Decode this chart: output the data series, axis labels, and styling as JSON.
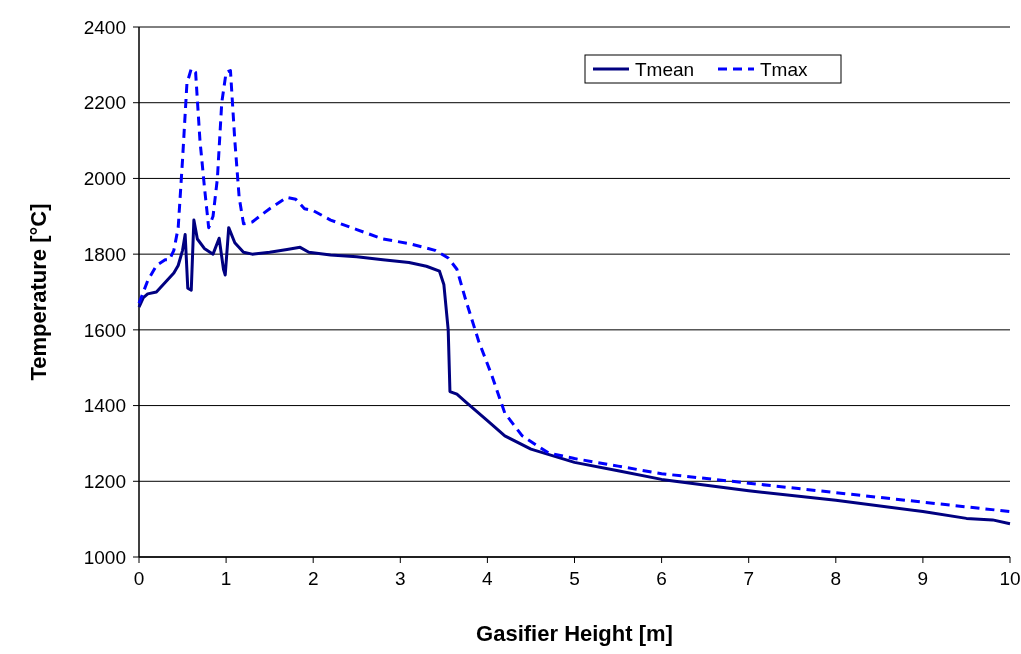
{
  "chart_data": {
    "type": "line",
    "xlabel": "Gasifier Height [m]",
    "ylabel": "Temperature [°C]",
    "xlim": [
      0,
      10
    ],
    "xticks": [
      0,
      1,
      2,
      3,
      4,
      5,
      6,
      7,
      8,
      9,
      10
    ],
    "ylim": [
      1000,
      2400
    ],
    "yticks": [
      1000,
      1200,
      1400,
      1600,
      1800,
      2000,
      2200,
      2400
    ],
    "grid": "y",
    "legend": "top right",
    "marker": "none",
    "series": [
      {
        "name": "Tmean",
        "color": "#000080",
        "line_style": "solid",
        "x": [
          0,
          0.05,
          0.1,
          0.2,
          0.3,
          0.4,
          0.45,
          0.5,
          0.53,
          0.56,
          0.6,
          0.63,
          0.67,
          0.75,
          0.85,
          0.92,
          0.97,
          0.99,
          1.03,
          1.1,
          1.2,
          1.3,
          1.5,
          1.7,
          1.85,
          1.95,
          2.2,
          2.5,
          2.8,
          3.1,
          3.3,
          3.45,
          3.5,
          3.55,
          3.57,
          3.65,
          3.75,
          4,
          4.2,
          4.5,
          5,
          5.5,
          6,
          7,
          8,
          9,
          9.5,
          9.8,
          10
        ],
        "values": [
          1660,
          1685,
          1695,
          1700,
          1725,
          1750,
          1770,
          1810,
          1852,
          1710,
          1705,
          1890,
          1840,
          1815,
          1800,
          1842,
          1760,
          1745,
          1870,
          1830,
          1805,
          1800,
          1805,
          1812,
          1818,
          1805,
          1798,
          1793,
          1785,
          1778,
          1768,
          1755,
          1720,
          1600,
          1437,
          1430,
          1410,
          1360,
          1320,
          1285,
          1250,
          1228,
          1205,
          1175,
          1150,
          1120,
          1102,
          1098,
          1088
        ]
      },
      {
        "name": "Tmax",
        "color": "#0000ff",
        "line_style": "dashed",
        "x": [
          0,
          0.1,
          0.2,
          0.3,
          0.35,
          0.4,
          0.45,
          0.5,
          0.55,
          0.6,
          0.65,
          0.7,
          0.75,
          0.8,
          0.85,
          0.9,
          0.95,
          1,
          1.05,
          1.1,
          1.15,
          1.2,
          1.3,
          1.5,
          1.7,
          1.8,
          1.9,
          2,
          2.2,
          2.5,
          2.8,
          3.1,
          3.4,
          3.55,
          3.65,
          3.75,
          3.9,
          4.05,
          4.2,
          4.4,
          4.7,
          5,
          5.5,
          6,
          7,
          8,
          9,
          10
        ],
        "values": [
          1670,
          1730,
          1770,
          1785,
          1785,
          1810,
          1870,
          2050,
          2250,
          2290,
          2280,
          2100,
          1980,
          1870,
          1900,
          2000,
          2200,
          2280,
          2285,
          2100,
          1950,
          1880,
          1885,
          1920,
          1950,
          1945,
          1920,
          1915,
          1890,
          1865,
          1840,
          1828,
          1810,
          1790,
          1760,
          1680,
          1570,
          1480,
          1380,
          1320,
          1275,
          1260,
          1240,
          1220,
          1195,
          1170,
          1145,
          1120
        ]
      }
    ]
  }
}
